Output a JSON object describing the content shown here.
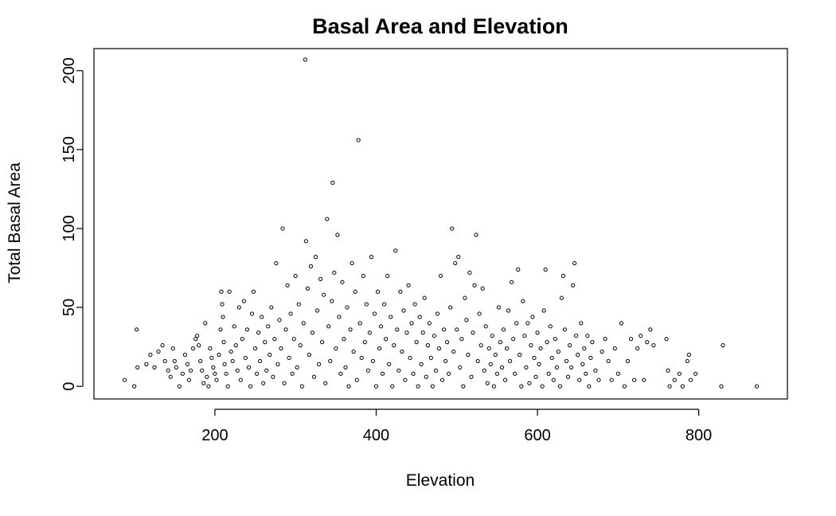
{
  "chart_data": {
    "type": "scatter",
    "title": "Basal Area and Elevation",
    "xlabel": "Elevation",
    "ylabel": "Total Basal Area",
    "xlim": [
      50,
      910
    ],
    "ylim": [
      -8,
      214
    ],
    "xticks": [
      200,
      400,
      600,
      800
    ],
    "yticks": [
      0,
      50,
      100,
      150,
      200
    ],
    "grid": false,
    "legend": "none",
    "marker": "open-circle",
    "color": "#000000",
    "points": [
      [
        88,
        4
      ],
      [
        100,
        0
      ],
      [
        103,
        36
      ],
      [
        104,
        12
      ],
      [
        115,
        14
      ],
      [
        120,
        20
      ],
      [
        125,
        12
      ],
      [
        130,
        22
      ],
      [
        135,
        26
      ],
      [
        138,
        16
      ],
      [
        142,
        10
      ],
      [
        145,
        6
      ],
      [
        148,
        24
      ],
      [
        150,
        16
      ],
      [
        152,
        12
      ],
      [
        156,
        0
      ],
      [
        160,
        8
      ],
      [
        163,
        20
      ],
      [
        166,
        14
      ],
      [
        168,
        4
      ],
      [
        170,
        10
      ],
      [
        173,
        24
      ],
      [
        176,
        30
      ],
      [
        178,
        32
      ],
      [
        180,
        26
      ],
      [
        182,
        16
      ],
      [
        184,
        10
      ],
      [
        186,
        2
      ],
      [
        188,
        40
      ],
      [
        190,
        6
      ],
      [
        192,
        0
      ],
      [
        194,
        24
      ],
      [
        196,
        18
      ],
      [
        198,
        12
      ],
      [
        200,
        8
      ],
      [
        202,
        4
      ],
      [
        205,
        20
      ],
      [
        207,
        36
      ],
      [
        208,
        60
      ],
      [
        209,
        52
      ],
      [
        210,
        44
      ],
      [
        211,
        28
      ],
      [
        212,
        14
      ],
      [
        214,
        8
      ],
      [
        216,
        0
      ],
      [
        218,
        60
      ],
      [
        220,
        22
      ],
      [
        222,
        16
      ],
      [
        224,
        38
      ],
      [
        226,
        26
      ],
      [
        228,
        10
      ],
      [
        230,
        50
      ],
      [
        232,
        4
      ],
      [
        234,
        30
      ],
      [
        236,
        54
      ],
      [
        238,
        18
      ],
      [
        240,
        36
      ],
      [
        242,
        12
      ],
      [
        244,
        0
      ],
      [
        246,
        46
      ],
      [
        248,
        60
      ],
      [
        250,
        24
      ],
      [
        252,
        8
      ],
      [
        254,
        34
      ],
      [
        256,
        16
      ],
      [
        258,
        44
      ],
      [
        260,
        2
      ],
      [
        262,
        28
      ],
      [
        264,
        10
      ],
      [
        266,
        38
      ],
      [
        268,
        20
      ],
      [
        270,
        50
      ],
      [
        272,
        6
      ],
      [
        274,
        30
      ],
      [
        276,
        78
      ],
      [
        278,
        14
      ],
      [
        280,
        42
      ],
      [
        282,
        24
      ],
      [
        284,
        100
      ],
      [
        286,
        2
      ],
      [
        288,
        36
      ],
      [
        290,
        64
      ],
      [
        292,
        18
      ],
      [
        294,
        46
      ],
      [
        296,
        8
      ],
      [
        298,
        30
      ],
      [
        300,
        70
      ],
      [
        302,
        12
      ],
      [
        304,
        52
      ],
      [
        306,
        26
      ],
      [
        308,
        0
      ],
      [
        310,
        40
      ],
      [
        312,
        207
      ],
      [
        313,
        92
      ],
      [
        315,
        62
      ],
      [
        317,
        20
      ],
      [
        319,
        76
      ],
      [
        321,
        34
      ],
      [
        323,
        6
      ],
      [
        325,
        82
      ],
      [
        327,
        48
      ],
      [
        329,
        14
      ],
      [
        331,
        68
      ],
      [
        333,
        28
      ],
      [
        335,
        58
      ],
      [
        337,
        2
      ],
      [
        339,
        106
      ],
      [
        341,
        38
      ],
      [
        343,
        16
      ],
      [
        345,
        54
      ],
      [
        346,
        129
      ],
      [
        348,
        72
      ],
      [
        350,
        24
      ],
      [
        352,
        96
      ],
      [
        354,
        44
      ],
      [
        356,
        8
      ],
      [
        358,
        66
      ],
      [
        360,
        30
      ],
      [
        362,
        12
      ],
      [
        364,
        50
      ],
      [
        366,
        0
      ],
      [
        368,
        36
      ],
      [
        370,
        78
      ],
      [
        372,
        22
      ],
      [
        374,
        60
      ],
      [
        376,
        4
      ],
      [
        378,
        156
      ],
      [
        380,
        40
      ],
      [
        382,
        18
      ],
      [
        384,
        70
      ],
      [
        386,
        28
      ],
      [
        388,
        52
      ],
      [
        390,
        10
      ],
      [
        392,
        34
      ],
      [
        394,
        82
      ],
      [
        396,
        16
      ],
      [
        398,
        46
      ],
      [
        400,
        0
      ],
      [
        402,
        60
      ],
      [
        404,
        24
      ],
      [
        406,
        38
      ],
      [
        408,
        8
      ],
      [
        410,
        52
      ],
      [
        412,
        30
      ],
      [
        414,
        70
      ],
      [
        416,
        14
      ],
      [
        418,
        44
      ],
      [
        420,
        0
      ],
      [
        422,
        26
      ],
      [
        424,
        86
      ],
      [
        426,
        36
      ],
      [
        428,
        10
      ],
      [
        430,
        60
      ],
      [
        432,
        22
      ],
      [
        434,
        48
      ],
      [
        436,
        4
      ],
      [
        438,
        34
      ],
      [
        440,
        64
      ],
      [
        442,
        18
      ],
      [
        444,
        40
      ],
      [
        446,
        8
      ],
      [
        448,
        52
      ],
      [
        450,
        28
      ],
      [
        452,
        0
      ],
      [
        454,
        44
      ],
      [
        456,
        14
      ],
      [
        458,
        34
      ],
      [
        460,
        56
      ],
      [
        462,
        6
      ],
      [
        464,
        26
      ],
      [
        466,
        40
      ],
      [
        468,
        18
      ],
      [
        470,
        0
      ],
      [
        472,
        32
      ],
      [
        474,
        10
      ],
      [
        476,
        46
      ],
      [
        478,
        24
      ],
      [
        480,
        70
      ],
      [
        482,
        4
      ],
      [
        484,
        36
      ],
      [
        486,
        16
      ],
      [
        488,
        28
      ],
      [
        490,
        8
      ],
      [
        492,
        50
      ],
      [
        494,
        100
      ],
      [
        496,
        22
      ],
      [
        498,
        78
      ],
      [
        500,
        36
      ],
      [
        502,
        82
      ],
      [
        504,
        12
      ],
      [
        506,
        30
      ],
      [
        508,
        0
      ],
      [
        510,
        56
      ],
      [
        512,
        42
      ],
      [
        514,
        20
      ],
      [
        516,
        72
      ],
      [
        518,
        6
      ],
      [
        520,
        34
      ],
      [
        522,
        64
      ],
      [
        524,
        96
      ],
      [
        526,
        16
      ],
      [
        528,
        46
      ],
      [
        530,
        26
      ],
      [
        532,
        62
      ],
      [
        534,
        10
      ],
      [
        536,
        38
      ],
      [
        538,
        2
      ],
      [
        540,
        24
      ],
      [
        542,
        14
      ],
      [
        544,
        32
      ],
      [
        546,
        0
      ],
      [
        548,
        20
      ],
      [
        550,
        8
      ],
      [
        552,
        50
      ],
      [
        554,
        28
      ],
      [
        556,
        12
      ],
      [
        558,
        36
      ],
      [
        560,
        4
      ],
      [
        562,
        24
      ],
      [
        564,
        48
      ],
      [
        566,
        16
      ],
      [
        568,
        66
      ],
      [
        570,
        30
      ],
      [
        572,
        8
      ],
      [
        574,
        40
      ],
      [
        576,
        74
      ],
      [
        578,
        20
      ],
      [
        580,
        0
      ],
      [
        582,
        54
      ],
      [
        584,
        32
      ],
      [
        586,
        12
      ],
      [
        588,
        40
      ],
      [
        590,
        2
      ],
      [
        592,
        26
      ],
      [
        594,
        44
      ],
      [
        596,
        18
      ],
      [
        598,
        6
      ],
      [
        600,
        34
      ],
      [
        602,
        14
      ],
      [
        604,
        24
      ],
      [
        606,
        0
      ],
      [
        608,
        48
      ],
      [
        610,
        74
      ],
      [
        612,
        28
      ],
      [
        614,
        8
      ],
      [
        616,
        38
      ],
      [
        618,
        18
      ],
      [
        620,
        4
      ],
      [
        622,
        30
      ],
      [
        624,
        12
      ],
      [
        626,
        22
      ],
      [
        628,
        0
      ],
      [
        630,
        56
      ],
      [
        632,
        70
      ],
      [
        634,
        36
      ],
      [
        636,
        16
      ],
      [
        638,
        6
      ],
      [
        640,
        26
      ],
      [
        642,
        12
      ],
      [
        644,
        64
      ],
      [
        646,
        78
      ],
      [
        648,
        32
      ],
      [
        650,
        20
      ],
      [
        652,
        4
      ],
      [
        654,
        40
      ],
      [
        656,
        14
      ],
      [
        658,
        24
      ],
      [
        660,
        8
      ],
      [
        662,
        32
      ],
      [
        664,
        0
      ],
      [
        666,
        18
      ],
      [
        668,
        28
      ],
      [
        672,
        10
      ],
      [
        676,
        4
      ],
      [
        680,
        22
      ],
      [
        684,
        30
      ],
      [
        688,
        16
      ],
      [
        692,
        4
      ],
      [
        696,
        24
      ],
      [
        700,
        8
      ],
      [
        704,
        40
      ],
      [
        708,
        0
      ],
      [
        712,
        16
      ],
      [
        716,
        30
      ],
      [
        720,
        4
      ],
      [
        724,
        24
      ],
      [
        728,
        32
      ],
      [
        732,
        4
      ],
      [
        736,
        28
      ],
      [
        740,
        36
      ],
      [
        744,
        26
      ],
      [
        760,
        30
      ],
      [
        762,
        10
      ],
      [
        764,
        0
      ],
      [
        770,
        4
      ],
      [
        776,
        8
      ],
      [
        780,
        0
      ],
      [
        786,
        16
      ],
      [
        788,
        20
      ],
      [
        790,
        4
      ],
      [
        796,
        8
      ],
      [
        830,
        26
      ],
      [
        828,
        0
      ],
      [
        872,
        0
      ]
    ]
  }
}
